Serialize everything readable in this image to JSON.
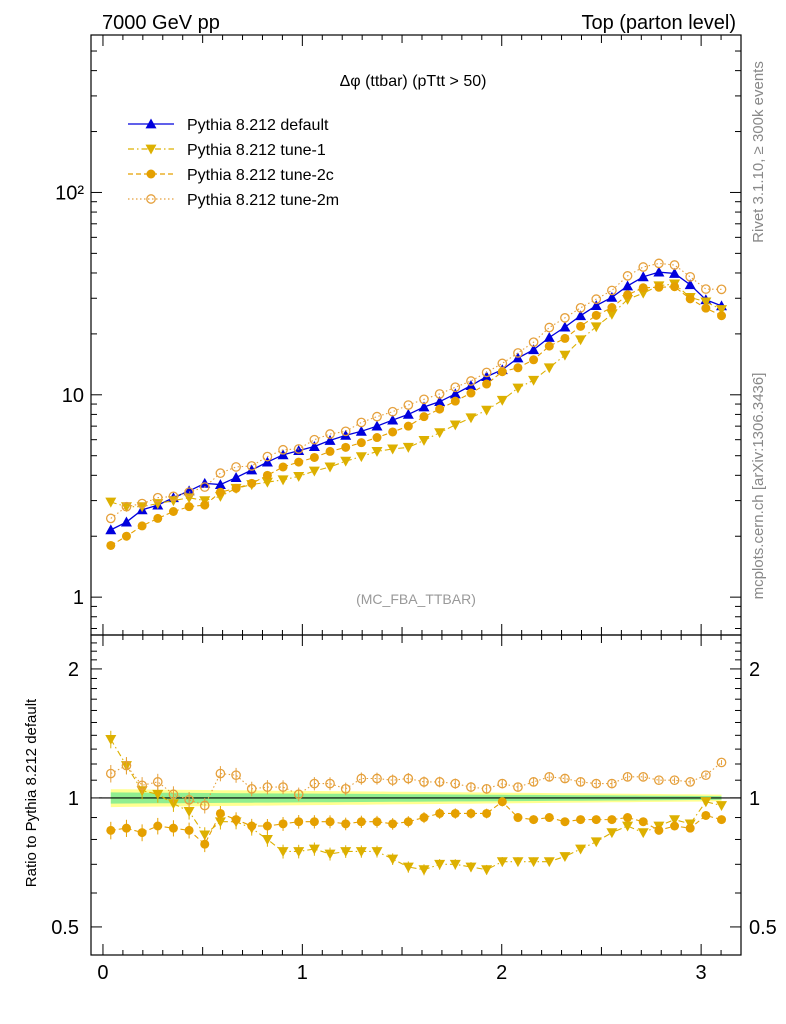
{
  "header": {
    "left": "7000 GeV pp",
    "right": "Top (parton level)"
  },
  "side_labels": {
    "rivet": "Rivet 3.1.10, ≥ 300k events",
    "source": "mcplots.cern.ch [arXiv:1306.3436]"
  },
  "chart_data": {
    "type": "line",
    "title": "Δφ (ttbar) (pTtt > 50)",
    "watermark": "(MC_FBA_TTBAR)",
    "y_scale": "log",
    "ylim": [
      0.65,
      600
    ],
    "xlim": [
      -0.06,
      3.2
    ],
    "grid": false,
    "legend_placement": "top-left",
    "y_ticks": [
      {
        "value": 1,
        "label": "1"
      },
      {
        "value": 10,
        "label": "10"
      },
      {
        "value": 100,
        "label": "10²"
      }
    ],
    "x_ticks": [
      {
        "value": 0,
        "label": "0"
      },
      {
        "value": 1,
        "label": "1"
      },
      {
        "value": 2,
        "label": "2"
      },
      {
        "value": 3,
        "label": "3"
      }
    ],
    "x": [
      0.0393,
      0.1178,
      0.1963,
      0.2749,
      0.3534,
      0.432,
      0.5105,
      0.589,
      0.6676,
      0.7461,
      0.8247,
      0.9032,
      0.9817,
      1.0603,
      1.1388,
      1.2174,
      1.2959,
      1.3744,
      1.453,
      1.5315,
      1.6101,
      1.6886,
      1.7671,
      1.8457,
      1.9242,
      2.0028,
      2.0813,
      2.1598,
      2.2384,
      2.3169,
      2.3955,
      2.474,
      2.5525,
      2.6311,
      2.7096,
      2.7882,
      2.8667,
      2.9452,
      3.0238,
      3.1023
    ],
    "series": [
      {
        "name": "Pythia 8.212 default",
        "color": "#0000dd",
        "marker": "triangle-up",
        "line": "solid",
        "values": [
          2.15,
          2.35,
          2.7,
          2.85,
          3.1,
          3.35,
          3.65,
          3.6,
          3.9,
          4.25,
          4.65,
          5.05,
          5.3,
          5.55,
          5.95,
          6.3,
          6.6,
          7.0,
          7.5,
          8.0,
          8.7,
          9.25,
          10.1,
          11.1,
          12.3,
          13.3,
          15.2,
          16.7,
          19.2,
          21.6,
          24.6,
          27.6,
          30.3,
          34.5,
          38.3,
          40.4,
          39.8,
          35.0,
          29.5,
          27.5
        ]
      },
      {
        "name": "Pythia 8.212 tune-1",
        "color": "#ddb000",
        "marker": "triangle-down",
        "line": "dashdot",
        "values": [
          2.95,
          2.8,
          2.8,
          2.9,
          3.0,
          3.1,
          3.0,
          3.15,
          3.45,
          3.6,
          3.7,
          3.8,
          3.95,
          4.2,
          4.4,
          4.7,
          4.95,
          5.25,
          5.4,
          5.5,
          5.95,
          6.5,
          7.1,
          7.7,
          8.4,
          9.4,
          10.8,
          11.8,
          13.6,
          15.7,
          18.7,
          21.7,
          25.0,
          29.6,
          31.8,
          34.6,
          35.3,
          30.3,
          28.8,
          26.4
        ]
      },
      {
        "name": "Pythia 8.212 tune-2c",
        "color": "#e5a000",
        "marker": "circle",
        "line": "dashed",
        "values": [
          1.8,
          2.0,
          2.25,
          2.45,
          2.65,
          2.8,
          2.85,
          3.3,
          3.45,
          3.65,
          4.0,
          4.4,
          4.65,
          4.9,
          5.25,
          5.5,
          5.8,
          6.15,
          6.55,
          7.0,
          7.8,
          8.5,
          9.3,
          10.2,
          11.3,
          13.0,
          13.6,
          14.9,
          17.4,
          19.0,
          21.8,
          24.7,
          27.0,
          31.2,
          33.8,
          34.0,
          34.2,
          29.8,
          26.8,
          24.6
        ]
      },
      {
        "name": "Pythia 8.212 tune-2m",
        "color": "#e5a03c",
        "marker": "open-circle",
        "line": "dotted",
        "values": [
          2.45,
          2.8,
          2.9,
          3.1,
          3.15,
          3.3,
          3.5,
          4.1,
          4.4,
          4.45,
          4.95,
          5.35,
          5.4,
          6.0,
          6.4,
          6.6,
          7.3,
          7.8,
          8.25,
          8.9,
          9.5,
          10.1,
          10.9,
          11.7,
          12.9,
          14.3,
          16.1,
          18.2,
          21.5,
          24.0,
          26.9,
          29.7,
          32.8,
          38.7,
          42.8,
          44.6,
          43.8,
          38.3,
          33.3,
          33.2
        ]
      }
    ],
    "ratio_panel": {
      "ylabel": "Ratio to Pythia 8.212 default",
      "ylim": [
        0.43,
        2.4
      ],
      "y_scale": "log",
      "y_ticks": [
        {
          "value": 0.5,
          "label": "0.5"
        },
        {
          "value": 1,
          "label": "1"
        },
        {
          "value": 2,
          "label": "2"
        }
      ],
      "band_colors": {
        "inner": "#90ee90",
        "outer": "#ffff90"
      },
      "series_ratios": [
        {
          "name": "Pythia 8.212 tune-1",
          "values": [
            1.37,
            1.19,
            1.04,
            1.02,
            0.97,
            0.93,
            0.82,
            0.88,
            0.88,
            0.85,
            0.8,
            0.75,
            0.75,
            0.76,
            0.74,
            0.75,
            0.75,
            0.75,
            0.72,
            0.69,
            0.68,
            0.7,
            0.7,
            0.69,
            0.68,
            0.71,
            0.71,
            0.71,
            0.71,
            0.73,
            0.76,
            0.79,
            0.83,
            0.86,
            0.83,
            0.86,
            0.89,
            0.87,
            0.98,
            0.96
          ]
        },
        {
          "name": "Pythia 8.212 tune-2c",
          "values": [
            0.84,
            0.85,
            0.83,
            0.86,
            0.85,
            0.84,
            0.78,
            0.92,
            0.89,
            0.86,
            0.86,
            0.87,
            0.88,
            0.88,
            0.88,
            0.87,
            0.88,
            0.88,
            0.87,
            0.88,
            0.9,
            0.92,
            0.92,
            0.92,
            0.92,
            0.98,
            0.9,
            0.89,
            0.9,
            0.88,
            0.89,
            0.89,
            0.89,
            0.9,
            0.88,
            0.84,
            0.86,
            0.85,
            0.91,
            0.89
          ]
        },
        {
          "name": "Pythia 8.212 tune-2m",
          "values": [
            1.14,
            1.19,
            1.07,
            1.09,
            1.02,
            0.99,
            0.96,
            1.14,
            1.13,
            1.05,
            1.06,
            1.06,
            1.02,
            1.08,
            1.08,
            1.05,
            1.11,
            1.11,
            1.1,
            1.11,
            1.09,
            1.09,
            1.08,
            1.06,
            1.05,
            1.08,
            1.06,
            1.09,
            1.12,
            1.11,
            1.09,
            1.08,
            1.08,
            1.12,
            1.12,
            1.1,
            1.1,
            1.09,
            1.13,
            1.21
          ]
        }
      ]
    }
  }
}
